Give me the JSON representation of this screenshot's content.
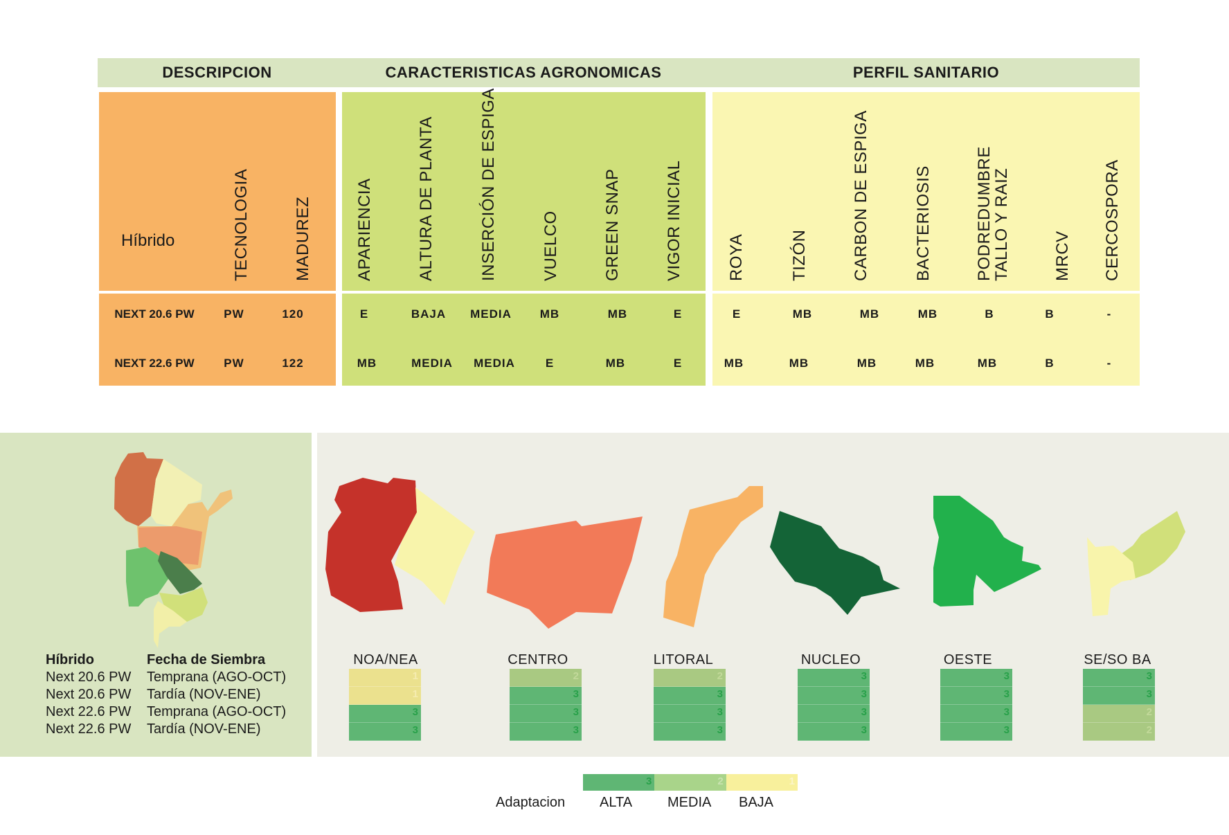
{
  "table": {
    "sections": {
      "descripcion": "DESCRIPCION",
      "agronomicas": "CARACTERISTICAS AGRONOMICAS",
      "sanitario": "PERFIL SANITARIO"
    },
    "hibrido_label": "Híbrido",
    "columns": {
      "tecnologia": "TECNOLOGIA",
      "madurez": "MADUREZ",
      "apariencia": "APARIENCIA",
      "altura": "ALTURA DE PLANTA",
      "insercion": "INSERCIÓN DE ESPIGA",
      "vuelco": "VUELCO",
      "green_snap": "GREEN SNAP",
      "vigor": "VIGOR INICIAL",
      "roya": "ROYA",
      "tizon": "TIZÓN",
      "carbon": "CARBON DE ESPIGA",
      "bacteriosis": "BACTERIOSIS",
      "podredumbre_1": "PODREDUMBRE",
      "podredumbre_2": "TALLO Y RAIZ",
      "mrcv": "MRCV",
      "cercospora": "CERCOSPORA"
    },
    "rows": [
      {
        "hibrido": "NEXT 20.6 PW",
        "tecnologia": "PW",
        "madurez": "120",
        "apariencia": "E",
        "altura": "BAJA",
        "insercion": "MEDIA",
        "vuelco": "MB",
        "green_snap": "MB",
        "vigor": "E",
        "roya": "E",
        "tizon": "MB",
        "carbon": "MB",
        "bacteriosis": "MB",
        "podredumbre": "B",
        "mrcv": "B",
        "cercospora": "-"
      },
      {
        "hibrido": "NEXT 22.6 PW",
        "tecnologia": "PW",
        "madurez": "122",
        "apariencia": "MB",
        "altura": "MEDIA",
        "insercion": "MEDIA",
        "vuelco": "E",
        "green_snap": "MB",
        "vigor": "E",
        "roya": "MB",
        "tizon": "MB",
        "carbon": "MB",
        "bacteriosis": "MB",
        "podredumbre": "MB",
        "mrcv": "B",
        "cercospora": "-"
      }
    ]
  },
  "siembra": {
    "header_hibrido": "Híbrido",
    "header_fecha": "Fecha de Siembra",
    "rows": [
      {
        "hibrido": "Next 20.6 PW",
        "fecha": "Temprana (AGO-OCT)"
      },
      {
        "hibrido": "Next 20.6 PW",
        "fecha": "Tardía (NOV-ENE)"
      },
      {
        "hibrido": "Next 22.6 PW",
        "fecha": "Temprana (AGO-OCT)"
      },
      {
        "hibrido": "Next 22.6 PW",
        "fecha": "Tardía (NOV-ENE)"
      }
    ]
  },
  "regions": [
    {
      "name": "NOA/NEA",
      "cells": [
        {
          "value": "1",
          "color": "#ebe18e"
        },
        {
          "value": "1",
          "color": "#ebe18e"
        },
        {
          "value": "3",
          "color": "#5fb674"
        },
        {
          "value": "3",
          "color": "#5fb674"
        }
      ]
    },
    {
      "name": "CENTRO",
      "cells": [
        {
          "value": "2",
          "color": "#a9c982"
        },
        {
          "value": "3",
          "color": "#5fb674"
        },
        {
          "value": "3",
          "color": "#5fb674"
        },
        {
          "value": "3",
          "color": "#5fb674"
        }
      ]
    },
    {
      "name": "LITORAL",
      "cells": [
        {
          "value": "2",
          "color": "#a9c982"
        },
        {
          "value": "3",
          "color": "#5fb674"
        },
        {
          "value": "3",
          "color": "#5fb674"
        },
        {
          "value": "3",
          "color": "#5fb674"
        }
      ]
    },
    {
      "name": "NUCLEO",
      "cells": [
        {
          "value": "3",
          "color": "#5fb674"
        },
        {
          "value": "3",
          "color": "#5fb674"
        },
        {
          "value": "3",
          "color": "#5fb674"
        },
        {
          "value": "3",
          "color": "#5fb674"
        }
      ]
    },
    {
      "name": "OESTE",
      "cells": [
        {
          "value": "3",
          "color": "#5fb674"
        },
        {
          "value": "3",
          "color": "#5fb674"
        },
        {
          "value": "3",
          "color": "#5fb674"
        },
        {
          "value": "3",
          "color": "#5fb674"
        }
      ]
    },
    {
      "name": "SE/SO BA",
      "cells": [
        {
          "value": "3",
          "color": "#5fb674"
        },
        {
          "value": "3",
          "color": "#5fb674"
        },
        {
          "value": "2",
          "color": "#a9c982"
        },
        {
          "value": "2",
          "color": "#a9c982"
        }
      ]
    }
  ],
  "scale": {
    "title": "Adaptacion",
    "items": [
      {
        "label": "ALTA",
        "value": "3",
        "color": "#5fb674"
      },
      {
        "label": "MEDIA",
        "value": "2",
        "color": "#a9d48a"
      },
      {
        "label": "BAJA",
        "value": "1",
        "color": "#f8f09c"
      }
    ]
  },
  "colors": {
    "descripcion_bg": "#f8b364",
    "agronomicas_bg": "#cfe07a",
    "sanitario_bg": "#faf6b2",
    "header_bg": "#d9e5c1",
    "panel_bg": "#eeeee6"
  }
}
